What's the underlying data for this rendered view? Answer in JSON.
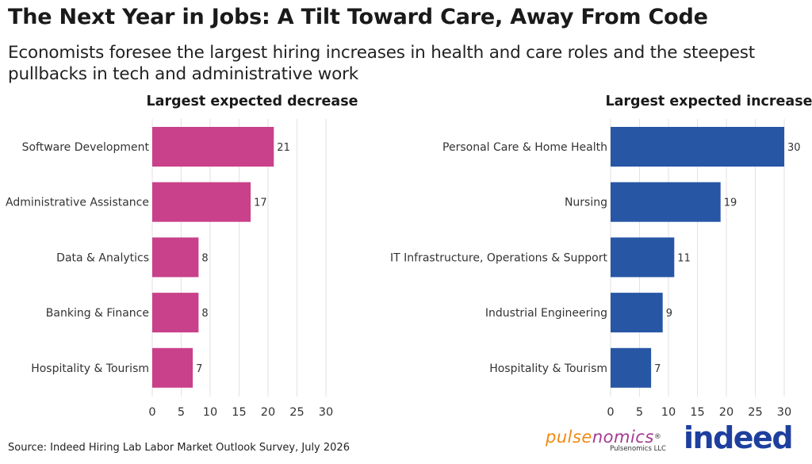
{
  "title": "The Next Year in Jobs: A Tilt Toward Care, Away From Code",
  "subtitle": "Economists foresee the largest hiring increases in health and care roles and the steepest pullbacks in tech and administrative work",
  "source": "Source: Indeed Hiring Lab Labor Market Outlook Survey, July 2026",
  "logos": {
    "pulsenomics_part1": "pulse",
    "pulsenomics_part2": "nomics",
    "pulsenomics_reg": "®",
    "pulsenomics_llc": "Pulsenomics LLC",
    "indeed": "indeed"
  },
  "colors": {
    "decrease": "#c9418a",
    "increase": "#2756a5"
  },
  "chart_data": [
    {
      "type": "bar",
      "orientation": "horizontal",
      "title": "Largest expected decrease",
      "categories": [
        "Software Development",
        "Administrative Assistance",
        "Data & Analytics",
        "Banking & Finance",
        "Hospitality & Tourism"
      ],
      "values": [
        21,
        17,
        8,
        8,
        7
      ],
      "xlim": [
        0,
        30
      ],
      "xticks": [
        0,
        5,
        10,
        15,
        20,
        25,
        30
      ],
      "grid": true
    },
    {
      "type": "bar",
      "orientation": "horizontal",
      "title": "Largest expected increase",
      "categories": [
        "Personal Care & Home Health",
        "Nursing",
        "IT Infrastructure, Operations & Support",
        "Industrial Engineering",
        "Hospitality & Tourism"
      ],
      "values": [
        30,
        19,
        11,
        9,
        7
      ],
      "xlim": [
        0,
        30
      ],
      "xticks": [
        0,
        5,
        10,
        15,
        20,
        25,
        30
      ],
      "grid": true
    }
  ]
}
